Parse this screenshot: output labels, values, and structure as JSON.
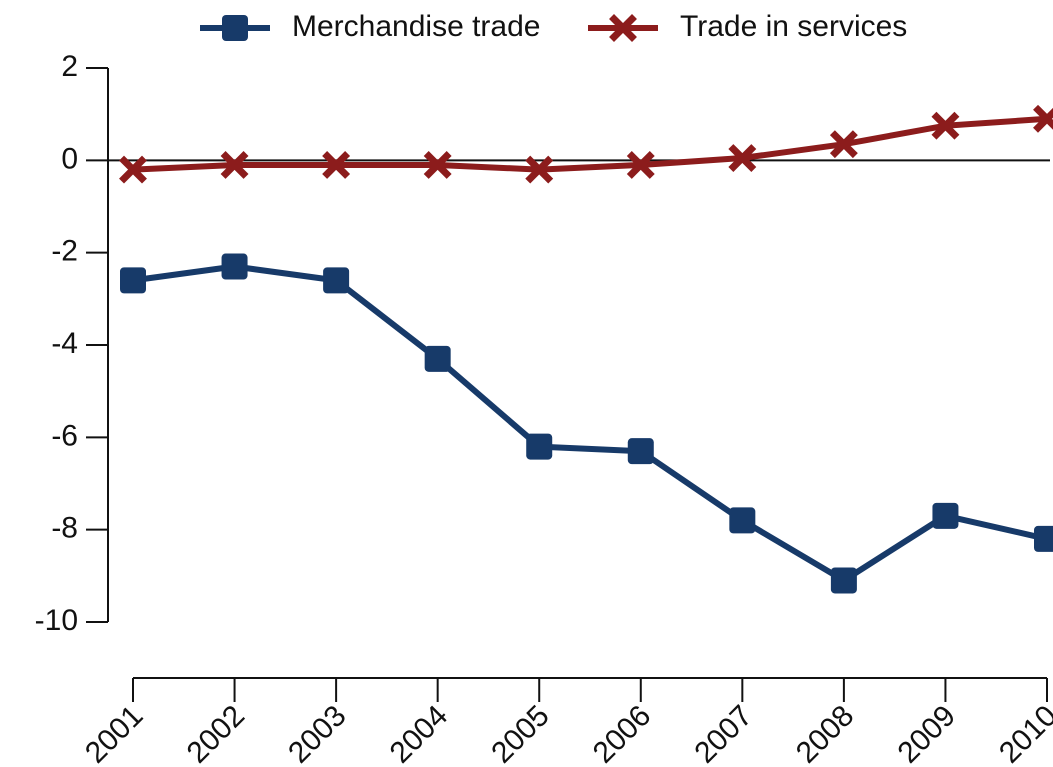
{
  "chart_data": {
    "type": "line",
    "categories": [
      "2001",
      "2002",
      "2003",
      "2004",
      "2005",
      "2006",
      "2007",
      "2008",
      "2009",
      "2010"
    ],
    "series": [
      {
        "name": "Merchandise trade",
        "color": "#173a69",
        "marker": "square",
        "values": [
          -2.6,
          -2.3,
          -2.6,
          -4.3,
          -6.2,
          -6.3,
          -7.8,
          -9.1,
          -7.7,
          -8.2
        ]
      },
      {
        "name": "Trade in services",
        "color": "#8c1c1c",
        "marker": "x",
        "values": [
          -0.2,
          -0.1,
          -0.1,
          -0.1,
          -0.2,
          -0.1,
          0.05,
          0.35,
          0.75,
          0.9
        ]
      }
    ],
    "ylim": [
      -10,
      2
    ],
    "yticks": [
      2,
      0,
      -2,
      -4,
      -6,
      -8,
      -10
    ],
    "legend": "top"
  }
}
